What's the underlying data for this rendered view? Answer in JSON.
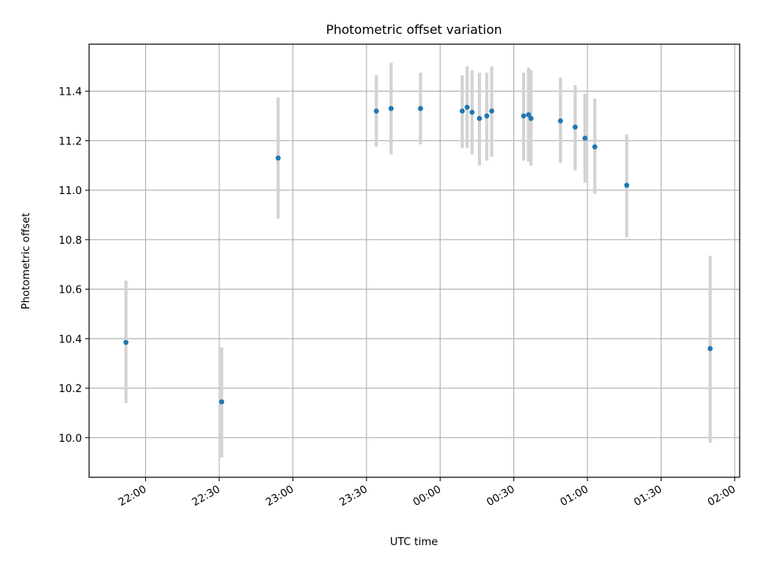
{
  "chart_data": {
    "type": "scatter",
    "title": "Photometric offset variation",
    "xlabel": "UTC time",
    "ylabel": "Photometric offset",
    "x_unit": "UTC clock time (HH:MM), spanning midnight",
    "xlim": [
      "21:37",
      "02:02"
    ],
    "ylim": [
      9.84,
      11.59
    ],
    "x_ticks": [
      "22:00",
      "22:30",
      "23:00",
      "23:30",
      "00:00",
      "00:30",
      "01:00",
      "01:30",
      "02:00"
    ],
    "y_ticks": [
      "10.0",
      "10.2",
      "10.4",
      "10.6",
      "10.8",
      "11.0",
      "11.2",
      "11.4"
    ],
    "grid": true,
    "colors": {
      "points": "#1f77b4",
      "error_bars": "#d3d3d3",
      "grid": "#b0b0b0"
    },
    "series": [
      {
        "points": [
          {
            "x": "21:52",
            "y": 10.385,
            "ylow": 10.14,
            "yhigh": 10.635
          },
          {
            "x": "22:31",
            "y": 10.145,
            "ylow": 9.92,
            "yhigh": 10.365
          },
          {
            "x": "22:54",
            "y": 11.13,
            "ylow": 10.885,
            "yhigh": 11.375
          },
          {
            "x": "23:34",
            "y": 11.32,
            "ylow": 11.175,
            "yhigh": 11.465
          },
          {
            "x": "23:40",
            "y": 11.33,
            "ylow": 11.145,
            "yhigh": 11.515
          },
          {
            "x": "23:52",
            "y": 11.33,
            "ylow": 11.185,
            "yhigh": 11.475
          },
          {
            "x": "00:09",
            "y": 11.32,
            "ylow": 11.17,
            "yhigh": 11.465
          },
          {
            "x": "00:11",
            "y": 11.335,
            "ylow": 11.17,
            "yhigh": 11.5
          },
          {
            "x": "00:13",
            "y": 11.315,
            "ylow": 11.145,
            "yhigh": 11.485
          },
          {
            "x": "00:16",
            "y": 11.29,
            "ylow": 11.1,
            "yhigh": 11.475
          },
          {
            "x": "00:19",
            "y": 11.3,
            "ylow": 11.12,
            "yhigh": 11.475
          },
          {
            "x": "00:21",
            "y": 11.32,
            "ylow": 11.135,
            "yhigh": 11.5
          },
          {
            "x": "00:34",
            "y": 11.3,
            "ylow": 11.12,
            "yhigh": 11.475
          },
          {
            "x": "00:36",
            "y": 11.305,
            "ylow": 11.115,
            "yhigh": 11.495
          },
          {
            "x": "00:37",
            "y": 11.29,
            "ylow": 11.1,
            "yhigh": 11.485
          },
          {
            "x": "00:49",
            "y": 11.28,
            "ylow": 11.11,
            "yhigh": 11.455
          },
          {
            "x": "00:55",
            "y": 11.255,
            "ylow": 11.08,
            "yhigh": 11.425
          },
          {
            "x": "00:59",
            "y": 11.21,
            "ylow": 11.03,
            "yhigh": 11.39
          },
          {
            "x": "01:03",
            "y": 11.175,
            "ylow": 10.985,
            "yhigh": 11.37
          },
          {
            "x": "01:16",
            "y": 11.02,
            "ylow": 10.81,
            "yhigh": 11.225
          },
          {
            "x": "01:50",
            "y": 10.36,
            "ylow": 9.98,
            "yhigh": 10.735
          }
        ]
      }
    ]
  }
}
